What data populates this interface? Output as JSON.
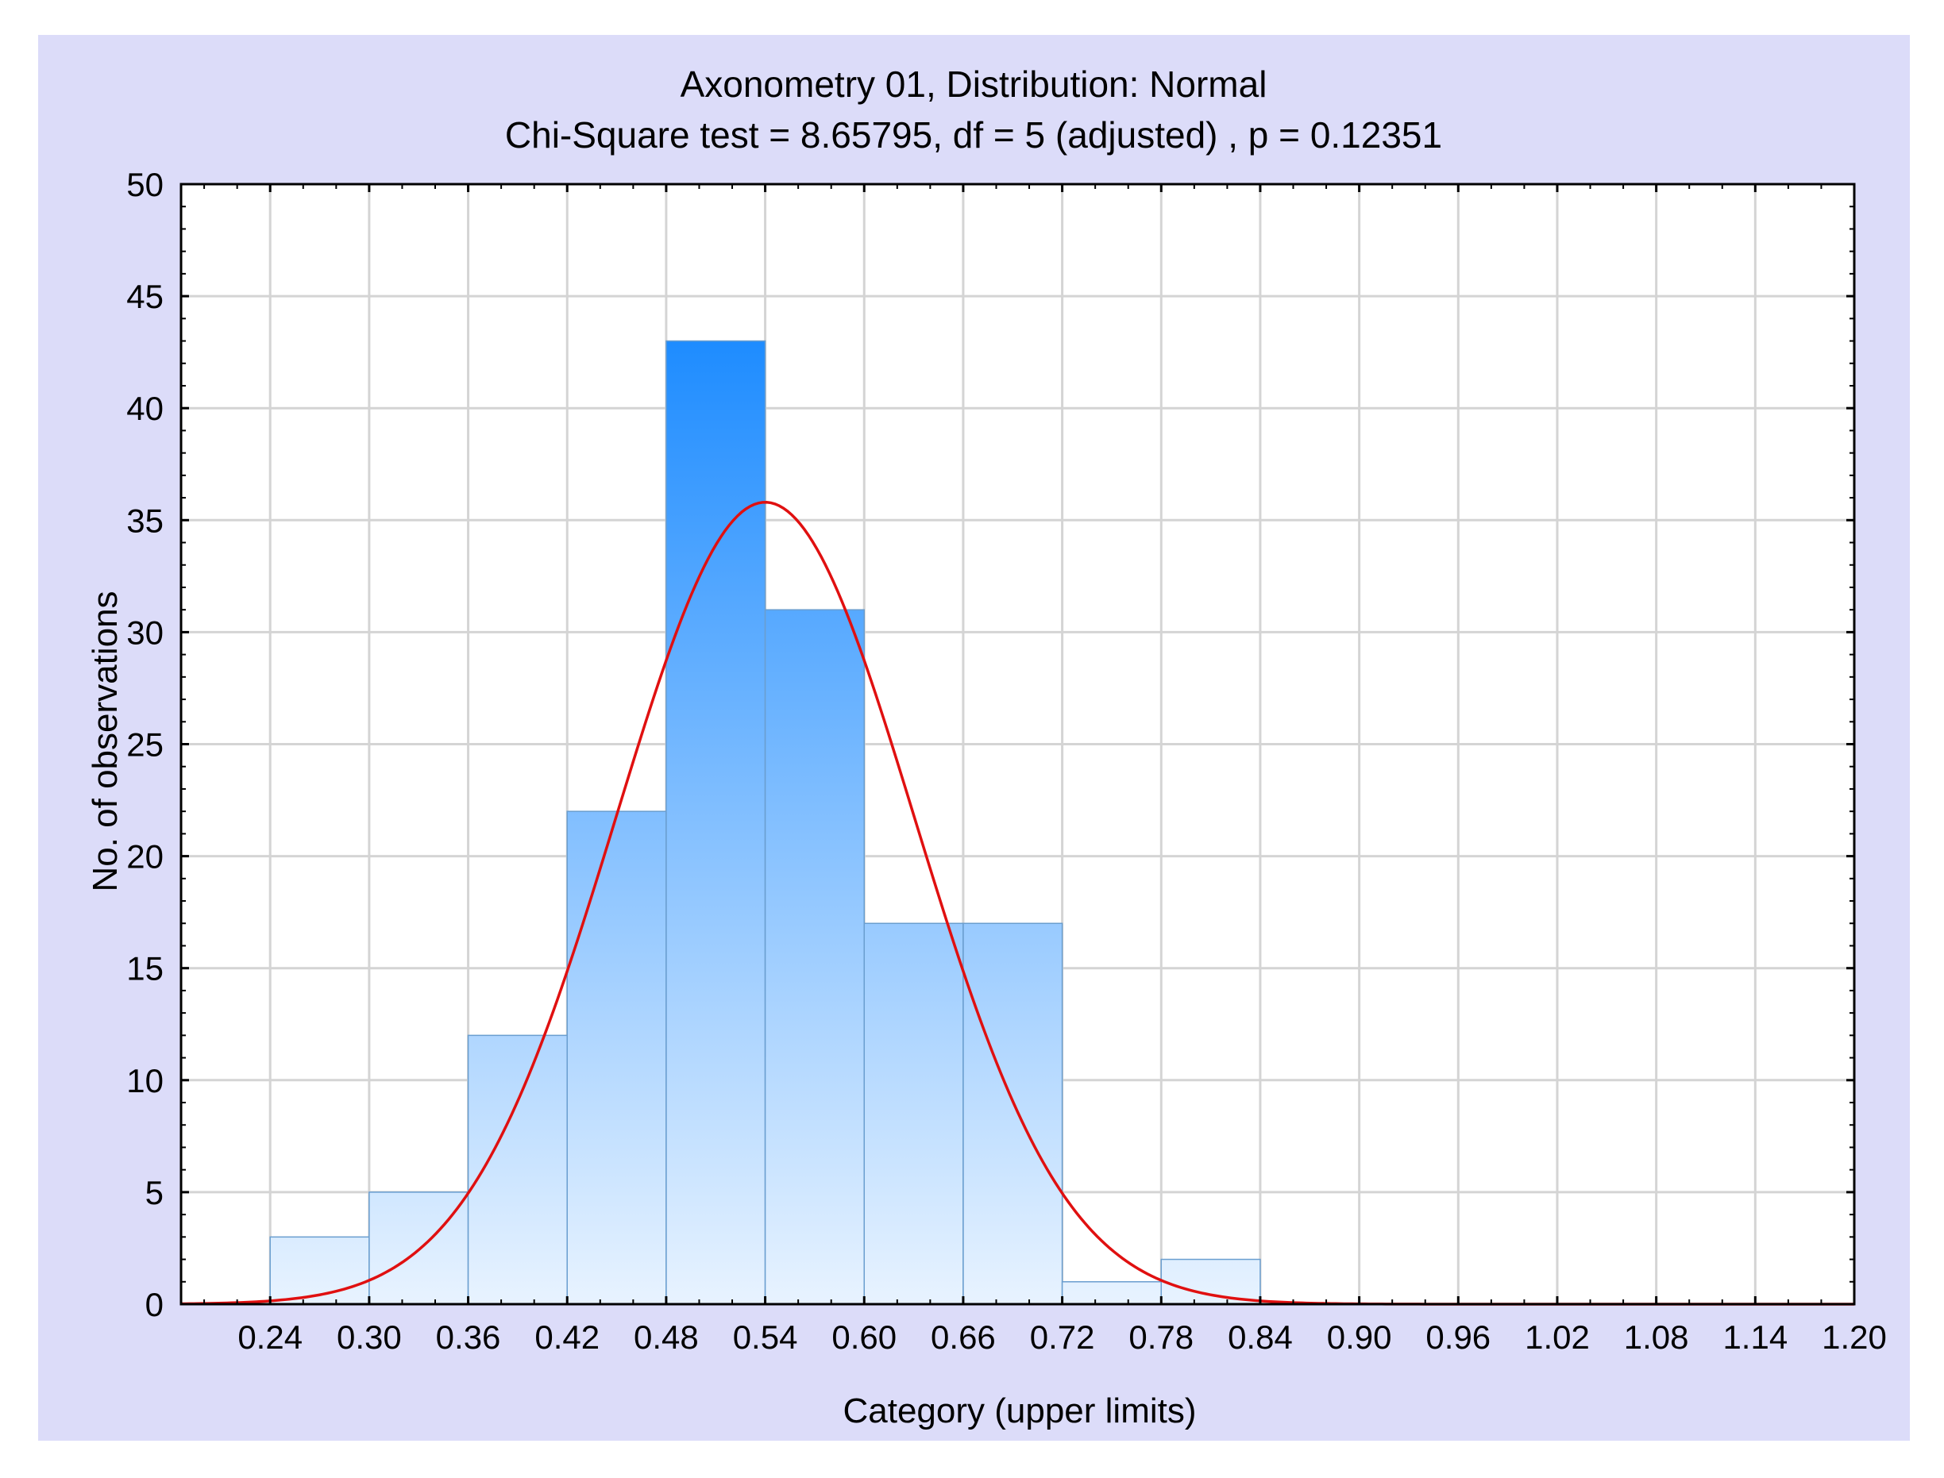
{
  "chart_data": {
    "type": "bar",
    "title": "Axonometry 01, Distribution: Normal",
    "subtitle": "Chi-Square test = 8.65795, df = 5 (adjusted) , p = 0.12351",
    "xlabel": "Category (upper limits)",
    "ylabel": "No. of observations",
    "xlim": [
      0.186,
      1.2
    ],
    "ylim": [
      0,
      50
    ],
    "x_ticks": [
      "0.24",
      "0.30",
      "0.36",
      "0.42",
      "0.48",
      "0.54",
      "0.60",
      "0.66",
      "0.72",
      "0.78",
      "0.84",
      "0.90",
      "0.96",
      "1.02",
      "1.08",
      "1.14",
      "1.20"
    ],
    "y_ticks": [
      0,
      5,
      10,
      15,
      20,
      25,
      30,
      35,
      40,
      45,
      50
    ],
    "grid": true,
    "bins": [
      {
        "lower": 0.24,
        "upper": 0.3,
        "value": 3
      },
      {
        "lower": 0.3,
        "upper": 0.36,
        "value": 5
      },
      {
        "lower": 0.36,
        "upper": 0.42,
        "value": 12
      },
      {
        "lower": 0.42,
        "upper": 0.48,
        "value": 22
      },
      {
        "lower": 0.48,
        "upper": 0.54,
        "value": 43
      },
      {
        "lower": 0.54,
        "upper": 0.6,
        "value": 31
      },
      {
        "lower": 0.6,
        "upper": 0.66,
        "value": 17
      },
      {
        "lower": 0.66,
        "upper": 0.72,
        "value": 17
      },
      {
        "lower": 0.72,
        "upper": 0.78,
        "value": 1
      },
      {
        "lower": 0.78,
        "upper": 0.84,
        "value": 2
      }
    ],
    "fit": {
      "type": "normal",
      "mean": 0.54,
      "peak": 35.8,
      "sd": 0.0905
    },
    "colors": {
      "panel_background": "#dcdcf9",
      "plot_background": "#ffffff",
      "grid": "#d4d4d4",
      "bar_top": "#1e8cff",
      "bar_bottom": "#e8f3ff",
      "bar_stroke": "#6a9ecf",
      "fit_line": "#e01010",
      "axis": "#000000"
    }
  }
}
